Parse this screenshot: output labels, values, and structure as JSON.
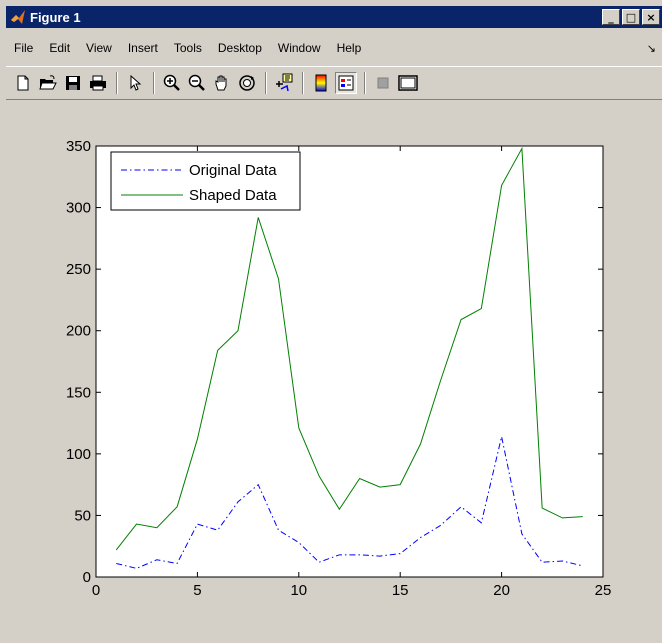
{
  "window": {
    "title": "Figure 1",
    "controls": [
      "_",
      "□",
      "×"
    ]
  },
  "menu": {
    "items": [
      "File",
      "Edit",
      "View",
      "Insert",
      "Tools",
      "Desktop",
      "Window",
      "Help"
    ]
  },
  "toolbar": {
    "tools": [
      "new-icon",
      "open-icon",
      "save-icon",
      "print-icon",
      "pointer-icon",
      "zoom-in-icon",
      "zoom-out-icon",
      "pan-icon",
      "rotate-icon",
      "datacursor-icon",
      "colorbar-icon",
      "legend-icon",
      "hide-plottools-icon",
      "show-plottools-icon"
    ]
  },
  "chart_data": {
    "type": "line",
    "xlim": [
      0,
      25
    ],
    "ylim": [
      0,
      350
    ],
    "xticks": [
      0,
      5,
      10,
      15,
      20,
      25
    ],
    "yticks": [
      0,
      50,
      100,
      150,
      200,
      250,
      300,
      350
    ],
    "legend_position": "top-left",
    "grid": false,
    "x": [
      1,
      2,
      3,
      4,
      5,
      6,
      7,
      8,
      9,
      10,
      11,
      12,
      13,
      14,
      15,
      16,
      17,
      18,
      19,
      20,
      21,
      22,
      23,
      24
    ],
    "series": [
      {
        "name": "Original Data",
        "color": "#0000ff",
        "style": "dash-dot",
        "values": [
          11,
          7,
          14,
          11,
          43,
          38,
          61,
          75,
          38,
          28,
          12,
          18,
          18,
          17,
          19,
          32,
          42,
          57,
          44,
          114,
          35,
          12,
          13,
          9
        ]
      },
      {
        "name": "Shaped Data",
        "color": "#008000",
        "style": "solid",
        "values": [
          22,
          43,
          40,
          57,
          112,
          184,
          200,
          292,
          242,
          121,
          82,
          55,
          80,
          73,
          75,
          108,
          160,
          209,
          218,
          318,
          348,
          56,
          48,
          49
        ]
      }
    ]
  }
}
